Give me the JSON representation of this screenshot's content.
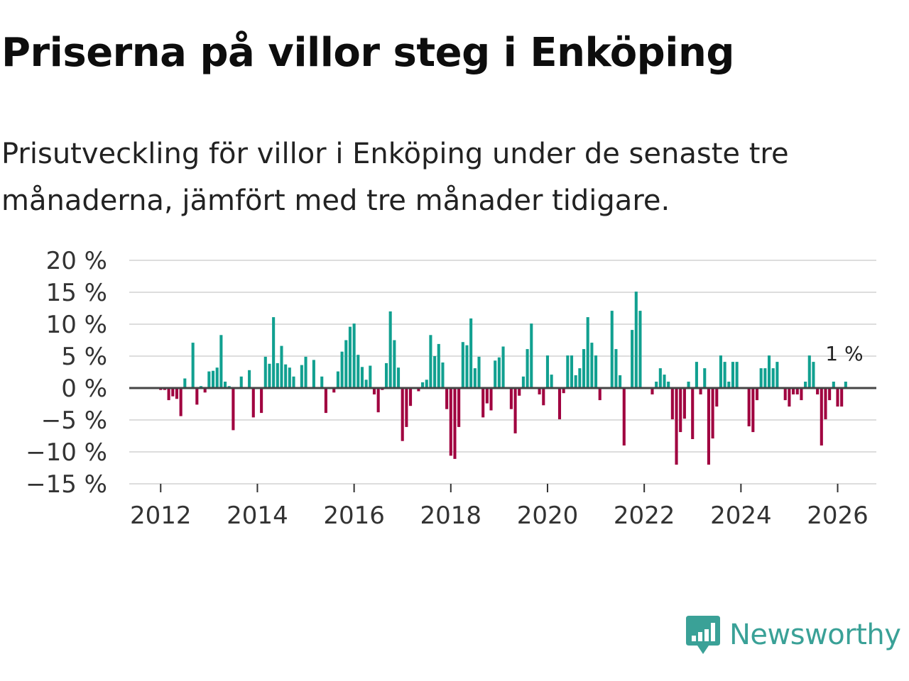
{
  "header": {
    "title": "Priserna på villor steg i Enköping",
    "subtitle": "Prisutveckling för villor i Enköping under de senaste tre månaderna, jämfört med tre månader tidigare."
  },
  "brand": {
    "name": "Newsworthy"
  },
  "colors": {
    "positive": "#11a090",
    "negative": "#a0003f",
    "grid": "#dddddd",
    "zero": "#444444",
    "brand": "#3aa197"
  },
  "chart_data": {
    "type": "bar",
    "title": "Priserna på villor steg i Enköping",
    "xlabel": "",
    "ylabel": "",
    "ylim": [
      -15,
      20
    ],
    "y_ticks": [
      20,
      15,
      10,
      5,
      0,
      -5,
      -10,
      -15
    ],
    "y_tick_labels": [
      "20 %",
      "15 %",
      "10 %",
      "5 %",
      "0 %",
      "−5 %",
      "−10 %",
      "−15 %"
    ],
    "x_ticks": [
      2012,
      2014,
      2016,
      2018,
      2020,
      2022,
      2024,
      2026
    ],
    "x_tick_labels": [
      "2012",
      "2014",
      "2016",
      "2018",
      "2020",
      "2022",
      "2024",
      "2026"
    ],
    "x_range": [
      2011.35,
      2026.8
    ],
    "start": 2012.0,
    "step": 0.08333,
    "values": [
      -0.3,
      -0.3,
      -1.9,
      -1.3,
      -1.7,
      -4.4,
      1.5,
      0,
      7.1,
      -2.6,
      0.3,
      -0.7,
      2.6,
      2.7,
      3.2,
      8.3,
      1.0,
      0.3,
      -6.6,
      0,
      1.8,
      0,
      2.8,
      -4.6,
      0,
      -3.9,
      4.9,
      3.8,
      11.1,
      3.9,
      6.6,
      3.7,
      3.2,
      1.8,
      0,
      3.6,
      4.9,
      0,
      4.4,
      0,
      1.8,
      -3.9,
      0,
      -0.7,
      2.6,
      5.7,
      7.5,
      9.6,
      10.1,
      5.2,
      3.3,
      1.3,
      3.5,
      -1.0,
      -3.8,
      -0.3,
      3.9,
      12.0,
      7.5,
      3.2,
      -8.3,
      -6.1,
      -2.8,
      0,
      -0.5,
      0.9,
      1.3,
      8.3,
      5.0,
      6.9,
      4.0,
      -3.3,
      -10.6,
      -11.1,
      -6.1,
      7.2,
      6.7,
      10.9,
      3.1,
      4.9,
      -4.6,
      -2.4,
      -3.5,
      4.3,
      4.8,
      6.5,
      0,
      -3.3,
      -7.1,
      -1.2,
      1.8,
      6.1,
      10.1,
      0,
      -1.0,
      -2.7,
      5.1,
      2.1,
      0,
      -4.9,
      -0.8,
      5.1,
      5.1,
      2.0,
      3.1,
      6.1,
      11.1,
      7.1,
      5.1,
      -1.9,
      0,
      0,
      12.1,
      6.1,
      2.0,
      -9.0,
      0,
      9.1,
      15.1,
      12.1,
      0,
      0,
      -1.0,
      1.0,
      3.1,
      2.1,
      1.0,
      -4.9,
      -12.0,
      -6.9,
      -4.8,
      1.0,
      -8.0,
      4.1,
      -1.0,
      3.1,
      -12.0,
      -7.9,
      -2.9,
      5.1,
      4.1,
      1.0,
      4.1,
      4.1,
      0,
      0,
      -6.0,
      -6.9,
      -1.9,
      3.1,
      3.1,
      5.1,
      3.1,
      4.1,
      0,
      -1.9,
      -2.9,
      -1.0,
      -1.0,
      -1.9,
      1.0,
      5.1,
      4.1,
      -1.0,
      -9.0,
      -4.9,
      -1.9,
      1.0,
      -2.9,
      -2.9,
      1.0
    ],
    "annotations": [
      {
        "text": "1 %",
        "x": 2026.08,
        "y": 1.0
      }
    ]
  }
}
